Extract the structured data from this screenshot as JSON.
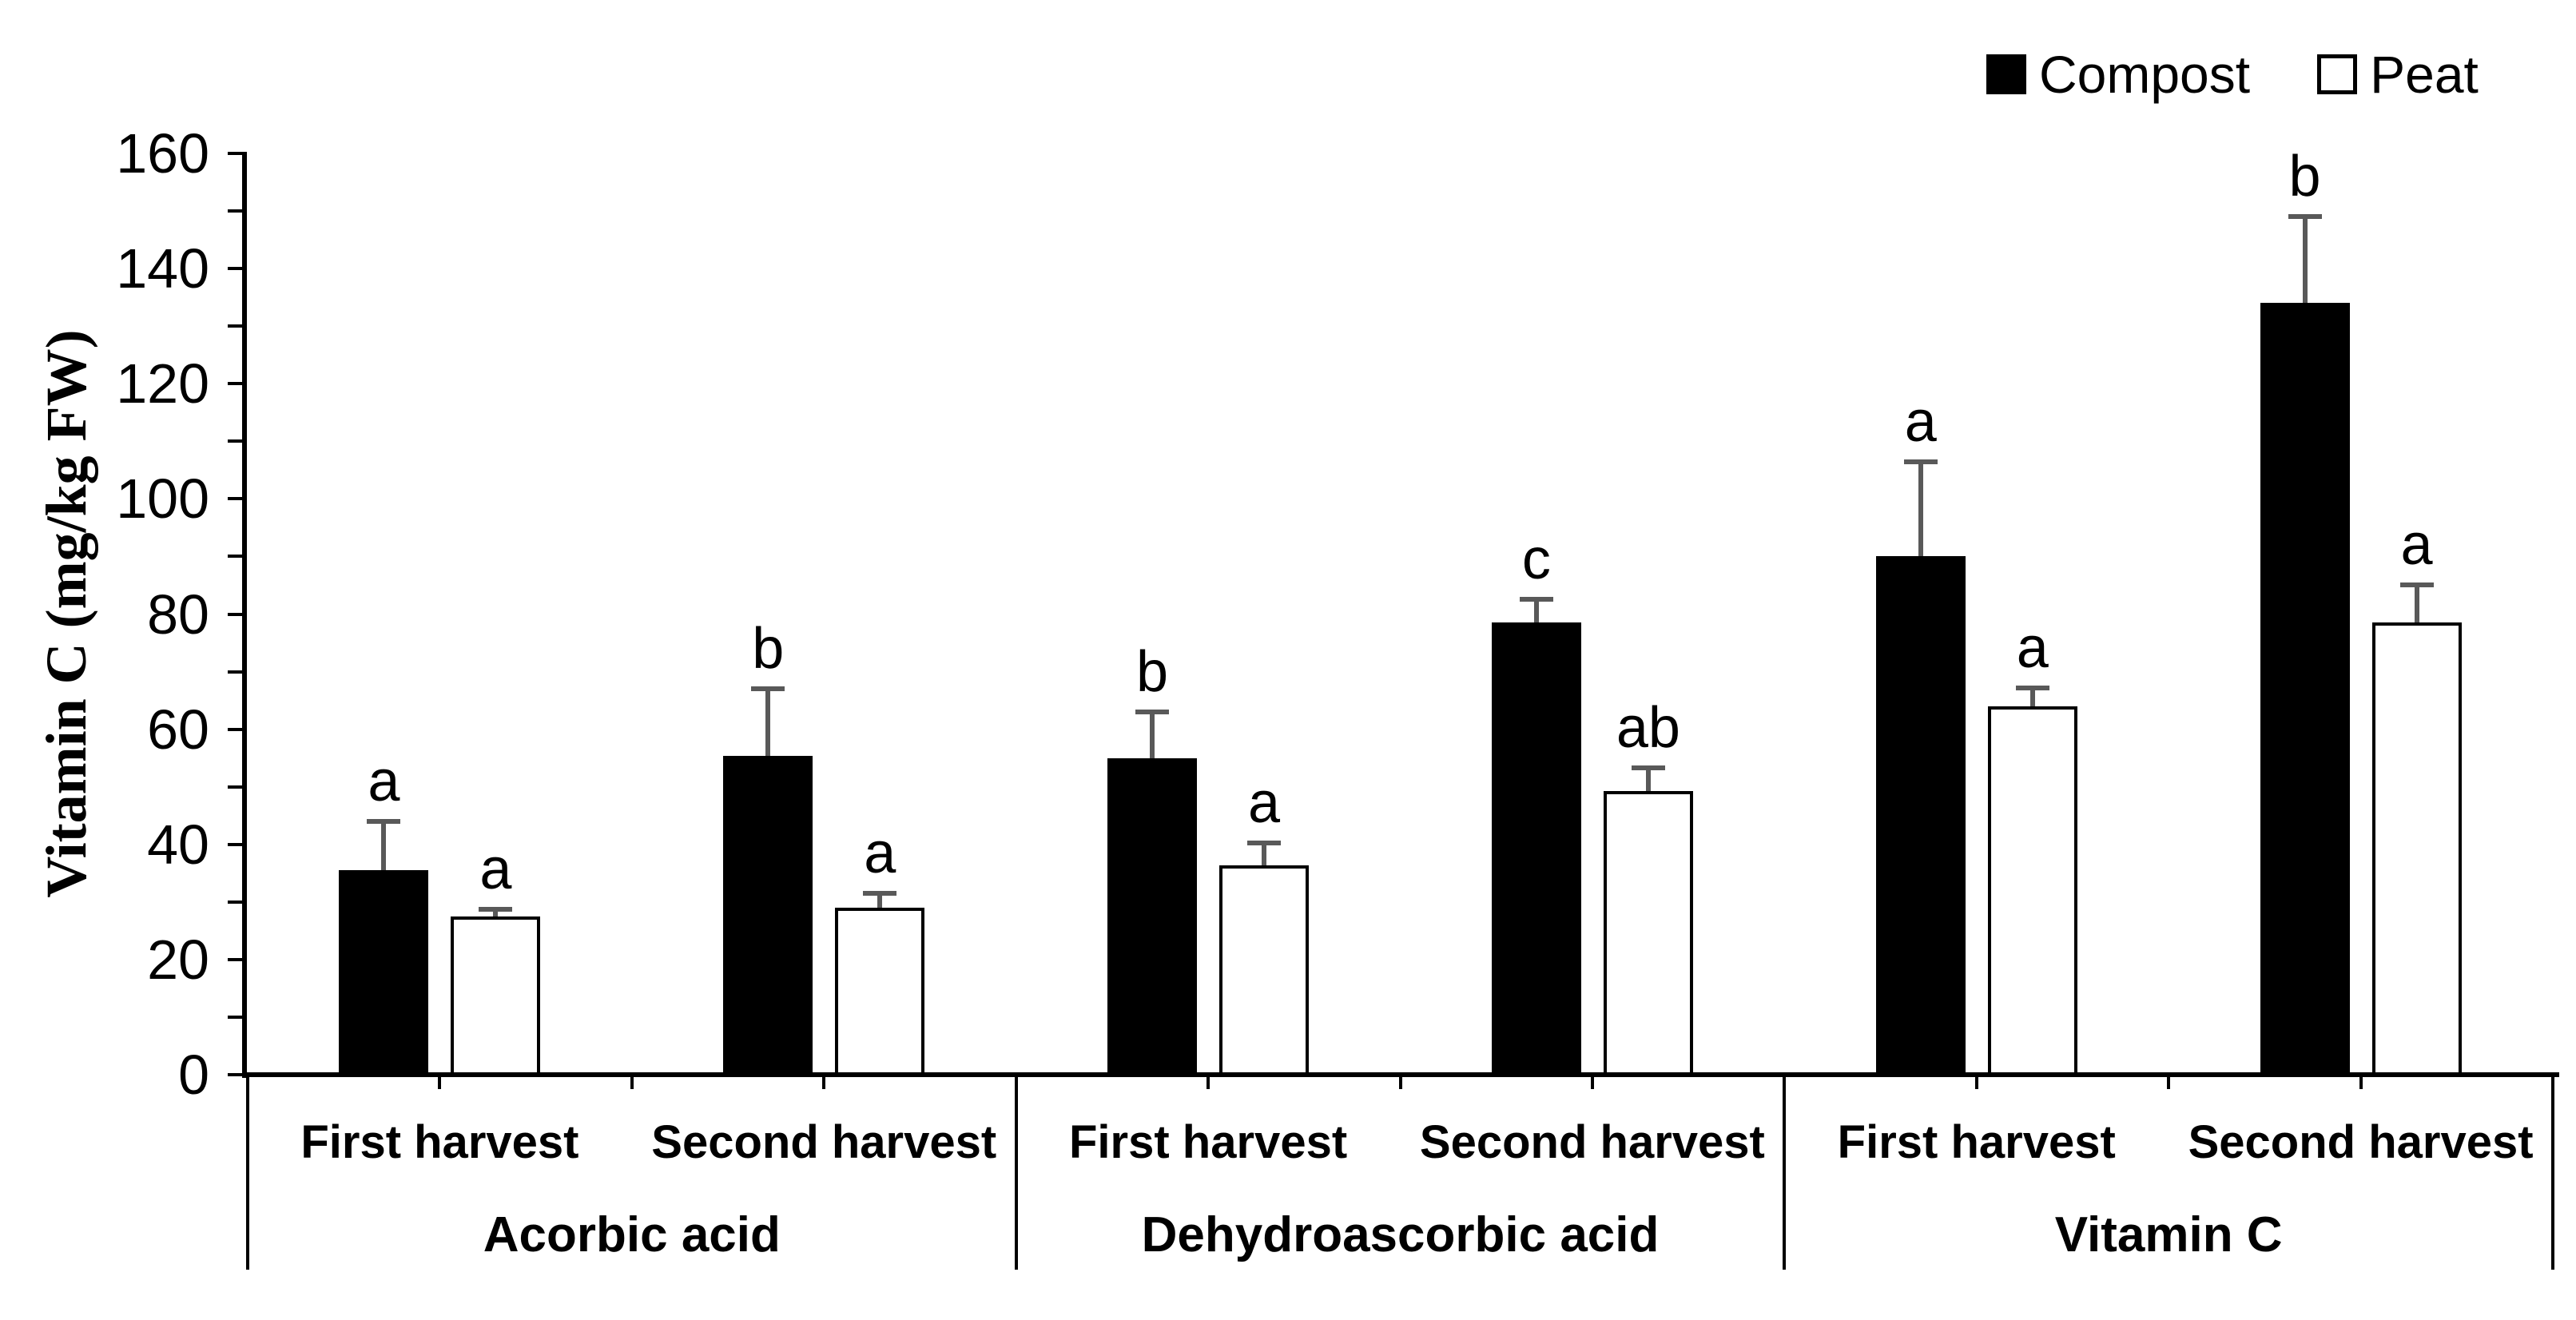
{
  "chart_data": {
    "type": "bar",
    "title": "",
    "ylabel": "Vitamin C (mg/kg FW)",
    "ylim": [
      0,
      160
    ],
    "yticks": [
      0,
      20,
      40,
      60,
      80,
      100,
      120,
      140,
      160
    ],
    "ytick_step": 20,
    "yminor_step": 10,
    "grid": false,
    "legend_position": "top-right",
    "error_bar_color": "#595959",
    "axis_color": "#000000",
    "legend": [
      {
        "name": "Compost",
        "fill": "#000000",
        "border": "#000000"
      },
      {
        "name": "Peat",
        "fill": "#ffffff",
        "border": "#000000"
      }
    ],
    "groups": [
      {
        "label": "Acorbic acid",
        "categories": [
          {
            "label": "First harvest",
            "bars": [
              {
                "series": "Compost",
                "value": 35.5,
                "error": 8.5,
                "letter": "a"
              },
              {
                "series": "Peat",
                "value": 27.5,
                "error": 1.2,
                "letter": "a"
              }
            ]
          },
          {
            "label": "Second harvest",
            "bars": [
              {
                "series": "Compost",
                "value": 55.3,
                "error": 11.7,
                "letter": "b"
              },
              {
                "series": "Peat",
                "value": 29.0,
                "error": 2.5,
                "letter": "a"
              }
            ]
          }
        ]
      },
      {
        "label": "Dehydroascorbic acid",
        "categories": [
          {
            "label": "First harvest",
            "bars": [
              {
                "series": "Compost",
                "value": 55.0,
                "error": 8.0,
                "letter": "b"
              },
              {
                "series": "Peat",
                "value": 36.3,
                "error": 3.9,
                "letter": "a"
              }
            ]
          },
          {
            "label": "Second harvest",
            "bars": [
              {
                "series": "Compost",
                "value": 78.5,
                "error": 4.0,
                "letter": "c"
              },
              {
                "series": "Peat",
                "value": 49.3,
                "error": 4.0,
                "letter": "ab"
              }
            ]
          }
        ]
      },
      {
        "label": "Vitamin C",
        "categories": [
          {
            "label": "First harvest",
            "bars": [
              {
                "series": "Compost",
                "value": 90.0,
                "error": 16.5,
                "letter": "a"
              },
              {
                "series": "Peat",
                "value": 64.0,
                "error": 3.2,
                "letter": "a"
              }
            ]
          },
          {
            "label": "Second harvest",
            "bars": [
              {
                "series": "Compost",
                "value": 134.0,
                "error": 15.0,
                "letter": "b"
              },
              {
                "series": "Peat",
                "value": 78.5,
                "error": 6.5,
                "letter": "a"
              }
            ]
          }
        ]
      }
    ]
  }
}
